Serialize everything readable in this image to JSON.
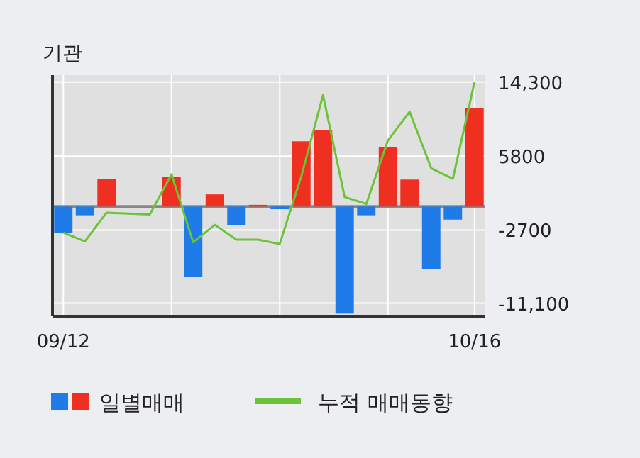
{
  "chart_data": {
    "type": "bar",
    "title": "기관",
    "categories": [
      "09/12",
      null,
      null,
      null,
      null,
      null,
      null,
      null,
      null,
      null,
      null,
      null,
      null,
      null,
      null,
      null,
      null,
      null,
      null,
      "10/16"
    ],
    "series": [
      {
        "name": "일별매매",
        "colors": [
          "#1e7be8",
          "#1e7be8",
          "#ef3020",
          null,
          null,
          "#ef3020",
          "#1e7be8",
          "#ef3020",
          "#1e7be8",
          "#ef3020",
          "#1e7be8",
          "#ef3020",
          "#ef3020",
          "#1e7be8",
          "#1e7be8",
          "#ef3020",
          "#ef3020",
          "#1e7be8",
          "#1e7be8",
          "#ef3020"
        ],
        "values": [
          -3000,
          -1000,
          3200,
          null,
          null,
          3400,
          -8100,
          1400,
          -2100,
          200,
          -300,
          7500,
          8800,
          -12300,
          -1000,
          6800,
          3100,
          -7200,
          -1500,
          11300
        ]
      },
      {
        "name": "누적 매매동향",
        "type": "line",
        "color": "#6cc33a",
        "values": [
          -3000,
          -4000,
          -700,
          -800,
          -900,
          3700,
          -4100,
          -2100,
          -3800,
          -3800,
          -4300,
          3500,
          12800,
          1100,
          300,
          7600,
          10900,
          4400,
          3200,
          14300
        ]
      }
    ],
    "ylim": [
      -12600,
      15100
    ],
    "yticks": [
      {
        "value": 14300,
        "label": "14,300"
      },
      5800,
      -2700,
      {
        "value": -11100,
        "label": "-11,100"
      }
    ],
    "ref_lines": [
      {
        "axis": "y",
        "value": 0,
        "color": "#888888"
      }
    ],
    "grid": true,
    "legend": "bottom left"
  }
}
